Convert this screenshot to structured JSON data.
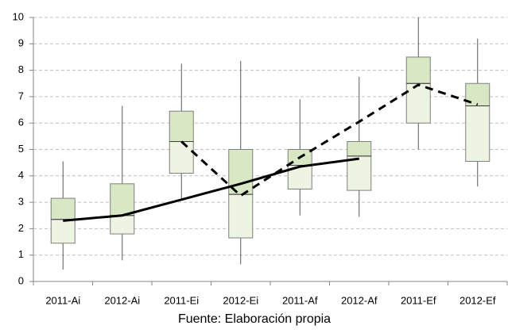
{
  "chart_data": {
    "type": "box",
    "categories": [
      "2011-Ai",
      "2012-Ai",
      "2011-Ei",
      "2012-Ei",
      "2011-Af",
      "2012-Af",
      "2011-Ef",
      "2012-Ef"
    ],
    "min": [
      0.45,
      0.8,
      3.1,
      0.65,
      2.5,
      2.45,
      5.0,
      3.6
    ],
    "q1": [
      1.45,
      1.8,
      4.1,
      1.65,
      3.5,
      3.45,
      6.0,
      4.55
    ],
    "median": [
      2.35,
      2.5,
      5.3,
      3.3,
      4.4,
      4.75,
      7.5,
      6.65
    ],
    "q3": [
      3.15,
      3.7,
      6.45,
      5.0,
      5.0,
      5.3,
      8.5,
      7.5
    ],
    "max": [
      4.55,
      6.65,
      8.25,
      8.35,
      6.9,
      7.75,
      10.0,
      9.2
    ],
    "box_colors": {
      "lower": "#eef4e2",
      "upper": "#d8e8c4",
      "border": "#7f7f7f"
    },
    "lines": [
      {
        "style": "solid",
        "color": "#000000",
        "values": [
          2.3,
          2.5,
          3.1,
          3.7,
          4.35,
          4.65,
          null,
          null
        ]
      },
      {
        "style": "dashed",
        "color": "#000000",
        "values": [
          null,
          null,
          5.3,
          3.25,
          4.7,
          6.05,
          7.45,
          6.7
        ]
      }
    ],
    "ylim": [
      0,
      10
    ],
    "yticks": [
      0,
      1,
      2,
      3,
      4,
      5,
      6,
      7,
      8,
      9,
      10
    ],
    "grid": true,
    "caption": "Fuente: Elaboración propia"
  }
}
